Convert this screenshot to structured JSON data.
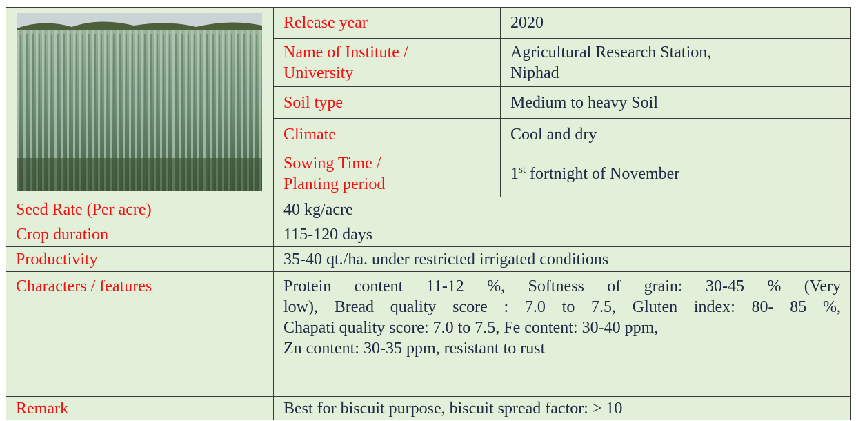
{
  "top_rows": [
    {
      "label": "Release year",
      "value": "2020"
    },
    {
      "label": [
        "Name of Institute /",
        "University"
      ],
      "value": [
        "Agricultural Research Station,",
        "Niphad"
      ]
    },
    {
      "label": "Soil type",
      "value": "Medium to heavy Soil"
    },
    {
      "label": "Climate",
      "value": "Cool and dry"
    },
    {
      "label": [
        "Sowing Time  /",
        "Planting  period"
      ],
      "value_runs": {
        "text": "1",
        "sup": "st",
        "rest": " fortnight of November"
      }
    }
  ],
  "bottom_rows": [
    {
      "label": "Seed Rate  (Per acre)",
      "value": "40 kg/acre"
    },
    {
      "label": "Crop duration",
      "value": "115-120 days"
    },
    {
      "label": "Productivity",
      "value": "35-40 qt./ha. under restricted irrigated conditions"
    },
    {
      "label": "Characters / features",
      "value": [
        "Protein content 11-12 %, Softness of grain: 30-45 % (Very",
        "low), Bread quality score : 7.0 to 7.5, Gluten index: 80- 85 %,",
        "Chapati quality score: 7.0 to 7.5, Fe content: 30-40 ppm,",
        "Zn content: 30-35 ppm, resistant to rust"
      ]
    },
    {
      "label": "Remark",
      "value": "Best for biscuit purpose, biscuit spread factor: > 10"
    }
  ]
}
